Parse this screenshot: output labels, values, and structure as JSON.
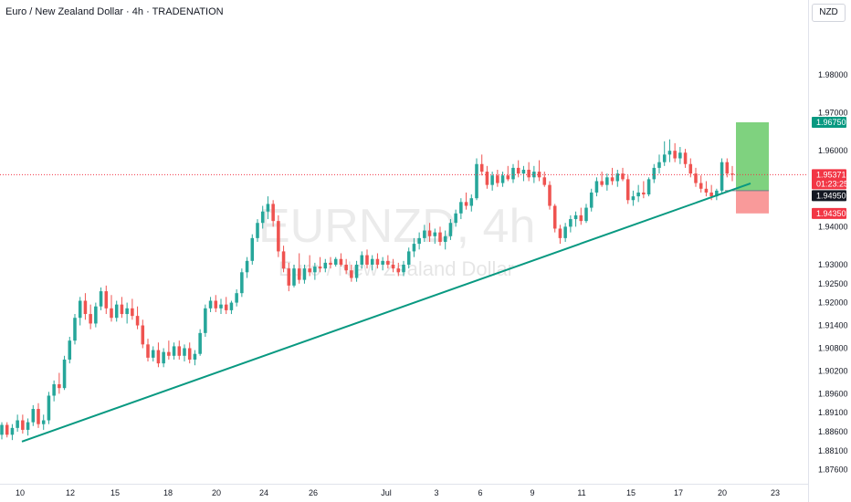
{
  "header": {
    "title": "Euro / New Zealand Dollar · 4h · TRADENATION",
    "currency": "NZD"
  },
  "watermark": {
    "symbol": "EURNZD, 4h",
    "name": "Euro / New Zealand Dollar"
  },
  "colors": {
    "up": "#26a69a",
    "down": "#ef5350",
    "trendline": "#089981",
    "target_zone": "#7fd27f",
    "stop_zone": "#f99a9a",
    "target_tag": "#089981",
    "stop_tag": "#f23645",
    "price_tag": "#f23645",
    "entry_tag": "#131722"
  },
  "chart_data": {
    "type": "candlestick",
    "title": "Euro / New Zealand Dollar · 4h · TRADENATION",
    "ylim": [
      1.8735,
      1.9925
    ],
    "y_ticks": [
      "1.98000",
      "1.97000",
      "1.96000",
      "1.94000",
      "1.93000",
      "1.92500",
      "1.92000",
      "1.91400",
      "1.90800",
      "1.90200",
      "1.89600",
      "1.89100",
      "1.88600",
      "1.88100",
      "1.87600"
    ],
    "x_ticks": [
      "10",
      "12",
      "15",
      "18",
      "20",
      "24",
      "26",
      "Jul",
      "3",
      "6",
      "9",
      "11",
      "15",
      "17",
      "20",
      "23"
    ],
    "price_markers": {
      "target": "1.96750",
      "current": "1.95371",
      "countdown": "01:23:25",
      "entry": "1.94950",
      "stop": "1.94350"
    },
    "trendline": {
      "start": 1.8834,
      "end": 1.9514
    },
    "position": {
      "target": 1.9675,
      "entry": 1.9495,
      "stop": 1.9435
    },
    "series": [
      {
        "values": [
          [
            1.8852,
            1.8885,
            1.884,
            1.8878
          ],
          [
            1.8878,
            1.8885,
            1.8845,
            1.8852
          ],
          [
            1.8852,
            1.888,
            1.8838,
            1.887
          ],
          [
            1.887,
            1.8905,
            1.886,
            1.889
          ],
          [
            1.889,
            1.8905,
            1.8855,
            1.8865
          ],
          [
            1.8865,
            1.8895,
            1.885,
            1.8885
          ],
          [
            1.8885,
            1.893,
            1.8875,
            1.892
          ],
          [
            1.892,
            1.8935,
            1.887,
            1.888
          ],
          [
            1.888,
            1.8905,
            1.8865,
            1.889
          ],
          [
            1.889,
            1.8965,
            1.888,
            1.8955
          ],
          [
            1.8955,
            1.8995,
            1.894,
            1.8985
          ],
          [
            1.8985,
            1.9015,
            1.896,
            1.8975
          ],
          [
            1.8975,
            1.906,
            1.897,
            1.905
          ],
          [
            1.905,
            1.911,
            1.904,
            1.91
          ],
          [
            1.91,
            1.917,
            1.909,
            1.916
          ],
          [
            1.916,
            1.9215,
            1.914,
            1.9205
          ],
          [
            1.9205,
            1.9225,
            1.9155,
            1.917
          ],
          [
            1.917,
            1.9195,
            1.913,
            1.9145
          ],
          [
            1.9145,
            1.92,
            1.9135,
            1.919
          ],
          [
            1.919,
            1.924,
            1.918,
            1.923
          ],
          [
            1.923,
            1.9245,
            1.917,
            1.9185
          ],
          [
            1.9185,
            1.922,
            1.915,
            1.916
          ],
          [
            1.916,
            1.9205,
            1.915,
            1.9195
          ],
          [
            1.9195,
            1.9215,
            1.916,
            1.917
          ],
          [
            1.917,
            1.92,
            1.9145,
            1.9185
          ],
          [
            1.9185,
            1.921,
            1.9155,
            1.9165
          ],
          [
            1.9165,
            1.919,
            1.913,
            1.914
          ],
          [
            1.914,
            1.9155,
            1.908,
            1.909
          ],
          [
            1.909,
            1.9105,
            1.9045,
            1.9055
          ],
          [
            1.9055,
            1.9085,
            1.9045,
            1.9075
          ],
          [
            1.9075,
            1.9095,
            1.903,
            1.904
          ],
          [
            1.904,
            1.908,
            1.903,
            1.907
          ],
          [
            1.907,
            1.91,
            1.905,
            1.906
          ],
          [
            1.906,
            1.9095,
            1.905,
            1.9085
          ],
          [
            1.9085,
            1.91,
            1.905,
            1.906
          ],
          [
            1.906,
            1.909,
            1.9045,
            1.908
          ],
          [
            1.908,
            1.9095,
            1.904,
            1.905
          ],
          [
            1.905,
            1.9075,
            1.9035,
            1.9065
          ],
          [
            1.9065,
            1.913,
            1.906,
            1.912
          ],
          [
            1.912,
            1.9195,
            1.911,
            1.9185
          ],
          [
            1.9185,
            1.9215,
            1.9175,
            1.9205
          ],
          [
            1.9205,
            1.922,
            1.9175,
            1.9185
          ],
          [
            1.9185,
            1.921,
            1.917,
            1.9195
          ],
          [
            1.9195,
            1.9215,
            1.917,
            1.918
          ],
          [
            1.918,
            1.9205,
            1.917,
            1.92
          ],
          [
            1.92,
            1.9235,
            1.919,
            1.9225
          ],
          [
            1.9225,
            1.929,
            1.9215,
            1.928
          ],
          [
            1.928,
            1.932,
            1.9265,
            1.931
          ],
          [
            1.931,
            1.938,
            1.93,
            1.937
          ],
          [
            1.937,
            1.942,
            1.936,
            1.941
          ],
          [
            1.941,
            1.9455,
            1.9395,
            1.944
          ],
          [
            1.944,
            1.948,
            1.942,
            1.946
          ],
          [
            1.946,
            1.947,
            1.94,
            1.9415
          ],
          [
            1.9415,
            1.943,
            1.932,
            1.9335
          ],
          [
            1.9335,
            1.935,
            1.928,
            1.929
          ],
          [
            1.929,
            1.9305,
            1.923,
            1.9245
          ],
          [
            1.9245,
            1.93,
            1.924,
            1.929
          ],
          [
            1.929,
            1.933,
            1.925,
            1.926
          ],
          [
            1.926,
            1.93,
            1.925,
            1.929
          ],
          [
            1.929,
            1.9325,
            1.927,
            1.928
          ],
          [
            1.928,
            1.9305,
            1.926,
            1.9295
          ],
          [
            1.9295,
            1.932,
            1.928,
            1.929
          ],
          [
            1.929,
            1.9315,
            1.928,
            1.9305
          ],
          [
            1.9305,
            1.932,
            1.929,
            1.93
          ],
          [
            1.93,
            1.932,
            1.9295,
            1.9315
          ],
          [
            1.9315,
            1.933,
            1.9295,
            1.93
          ],
          [
            1.93,
            1.9315,
            1.9275,
            1.9285
          ],
          [
            1.9285,
            1.93,
            1.9255,
            1.9265
          ],
          [
            1.9265,
            1.931,
            1.9255,
            1.93
          ],
          [
            1.93,
            1.9335,
            1.929,
            1.9325
          ],
          [
            1.9325,
            1.934,
            1.929,
            1.93
          ],
          [
            1.93,
            1.9325,
            1.9285,
            1.9315
          ],
          [
            1.9315,
            1.933,
            1.929,
            1.93
          ],
          [
            1.93,
            1.932,
            1.9285,
            1.931
          ],
          [
            1.931,
            1.9325,
            1.929,
            1.93
          ],
          [
            1.93,
            1.9315,
            1.928,
            1.929
          ],
          [
            1.929,
            1.9305,
            1.927,
            1.928
          ],
          [
            1.928,
            1.931,
            1.927,
            1.93
          ],
          [
            1.93,
            1.9345,
            1.929,
            1.9335
          ],
          [
            1.9335,
            1.937,
            1.932,
            1.9355
          ],
          [
            1.9355,
            1.9385,
            1.934,
            1.937
          ],
          [
            1.937,
            1.9405,
            1.936,
            1.939
          ],
          [
            1.939,
            1.941,
            1.936,
            1.9375
          ],
          [
            1.9375,
            1.9395,
            1.9355,
            1.9385
          ],
          [
            1.9385,
            1.94,
            1.935,
            1.936
          ],
          [
            1.936,
            1.939,
            1.934,
            1.9375
          ],
          [
            1.9375,
            1.942,
            1.9365,
            1.941
          ],
          [
            1.941,
            1.9445,
            1.94,
            1.9435
          ],
          [
            1.9435,
            1.9475,
            1.942,
            1.9465
          ],
          [
            1.9465,
            1.949,
            1.9445,
            1.9455
          ],
          [
            1.9455,
            1.9485,
            1.944,
            1.9475
          ],
          [
            1.9475,
            1.958,
            1.947,
            1.9565
          ],
          [
            1.9565,
            1.959,
            1.9535,
            1.9545
          ],
          [
            1.9545,
            1.956,
            1.95,
            1.951
          ],
          [
            1.951,
            1.9545,
            1.9495,
            1.9535
          ],
          [
            1.9535,
            1.955,
            1.9505,
            1.9515
          ],
          [
            1.9515,
            1.9545,
            1.9505,
            1.9535
          ],
          [
            1.9535,
            1.956,
            1.952,
            1.9525
          ],
          [
            1.9525,
            1.9565,
            1.9515,
            1.9555
          ],
          [
            1.9555,
            1.9575,
            1.953,
            1.954
          ],
          [
            1.954,
            1.956,
            1.952,
            1.955
          ],
          [
            1.955,
            1.957,
            1.952,
            1.953
          ],
          [
            1.953,
            1.956,
            1.9515,
            1.9545
          ],
          [
            1.9545,
            1.9575,
            1.952,
            1.953
          ],
          [
            1.953,
            1.9545,
            1.9505,
            1.951
          ],
          [
            1.951,
            1.952,
            1.9445,
            1.9455
          ],
          [
            1.9455,
            1.946,
            1.9385,
            1.9395
          ],
          [
            1.9395,
            1.9405,
            1.9355,
            1.937
          ],
          [
            1.937,
            1.941,
            1.936,
            1.94
          ],
          [
            1.94,
            1.943,
            1.9385,
            1.942
          ],
          [
            1.942,
            1.944,
            1.94,
            1.943
          ],
          [
            1.943,
            1.945,
            1.9405,
            1.9415
          ],
          [
            1.9415,
            1.946,
            1.941,
            1.945
          ],
          [
            1.945,
            1.95,
            1.944,
            1.949
          ],
          [
            1.949,
            1.953,
            1.948,
            1.952
          ],
          [
            1.952,
            1.9545,
            1.9505,
            1.951
          ],
          [
            1.951,
            1.954,
            1.9495,
            1.953
          ],
          [
            1.953,
            1.9555,
            1.951,
            1.952
          ],
          [
            1.952,
            1.955,
            1.9505,
            1.954
          ],
          [
            1.954,
            1.9555,
            1.952,
            1.9525
          ],
          [
            1.9525,
            1.9535,
            1.946,
            1.947
          ],
          [
            1.947,
            1.9495,
            1.9455,
            1.948
          ],
          [
            1.948,
            1.951,
            1.9465,
            1.949
          ],
          [
            1.949,
            1.952,
            1.9475,
            1.9485
          ],
          [
            1.9485,
            1.953,
            1.948,
            1.9525
          ],
          [
            1.9525,
            1.9565,
            1.9515,
            1.9555
          ],
          [
            1.9555,
            1.959,
            1.954,
            1.957
          ],
          [
            1.957,
            1.9625,
            1.956,
            1.959
          ],
          [
            1.959,
            1.963,
            1.957,
            1.96
          ],
          [
            1.96,
            1.962,
            1.957,
            1.958
          ],
          [
            1.958,
            1.961,
            1.9565,
            1.9595
          ],
          [
            1.9595,
            1.9605,
            1.9555,
            1.9565
          ],
          [
            1.9565,
            1.958,
            1.953,
            1.954
          ],
          [
            1.954,
            1.9555,
            1.9505,
            1.9515
          ],
          [
            1.9515,
            1.9535,
            1.949,
            1.95
          ],
          [
            1.95,
            1.952,
            1.948,
            1.949
          ],
          [
            1.949,
            1.951,
            1.947,
            1.948
          ],
          [
            1.948,
            1.95,
            1.947,
            1.9495
          ],
          [
            1.9495,
            1.958,
            1.949,
            1.957
          ],
          [
            1.957,
            1.958,
            1.953,
            1.954
          ],
          [
            1.954,
            1.956,
            1.952,
            1.9537
          ]
        ]
      }
    ]
  }
}
